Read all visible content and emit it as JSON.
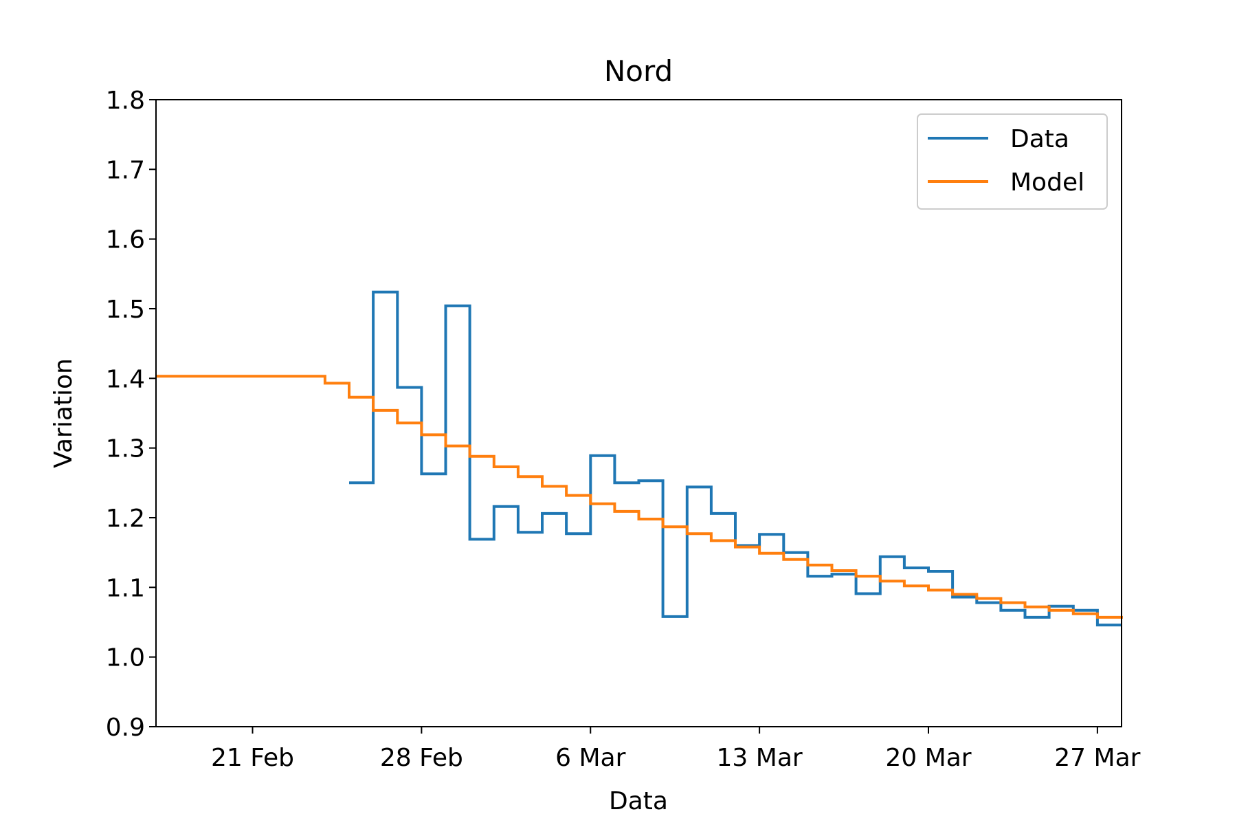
{
  "chart_data": {
    "type": "line",
    "title": "Nord",
    "xlabel": "Data",
    "ylabel": "Variation",
    "ylim": [
      0.9,
      1.8
    ],
    "xlim": [
      "2020-02-17",
      "2020-03-28"
    ],
    "x_ticks": [
      {
        "date": "2020-02-21",
        "label": "21 Feb"
      },
      {
        "date": "2020-02-28",
        "label": "28 Feb"
      },
      {
        "date": "2020-03-06",
        "label": "6 Mar"
      },
      {
        "date": "2020-03-13",
        "label": "13 Mar"
      },
      {
        "date": "2020-03-20",
        "label": "20 Mar"
      },
      {
        "date": "2020-03-27",
        "label": "27 Mar"
      }
    ],
    "y_ticks": [
      "0.9",
      "1.0",
      "1.1",
      "1.2",
      "1.3",
      "1.4",
      "1.5",
      "1.6",
      "1.7",
      "1.8"
    ],
    "grid": false,
    "legend": "upper right",
    "step": "post",
    "series": [
      {
        "name": "Data",
        "color": "#1f77b4",
        "x": [
          "2020-02-25",
          "2020-02-26",
          "2020-02-27",
          "2020-02-28",
          "2020-02-29",
          "2020-03-01",
          "2020-03-02",
          "2020-03-03",
          "2020-03-04",
          "2020-03-05",
          "2020-03-06",
          "2020-03-07",
          "2020-03-08",
          "2020-03-09",
          "2020-03-10",
          "2020-03-11",
          "2020-03-12",
          "2020-03-13",
          "2020-03-14",
          "2020-03-15",
          "2020-03-16",
          "2020-03-17",
          "2020-03-18",
          "2020-03-19",
          "2020-03-20",
          "2020-03-21",
          "2020-03-22",
          "2020-03-23",
          "2020-03-24",
          "2020-03-25",
          "2020-03-26",
          "2020-03-27",
          "2020-03-28"
        ],
        "values": [
          1.25,
          1.524,
          1.387,
          1.263,
          1.504,
          1.169,
          1.216,
          1.179,
          1.206,
          1.177,
          1.289,
          1.25,
          1.253,
          1.058,
          1.244,
          1.206,
          1.16,
          1.176,
          1.15,
          1.116,
          1.119,
          1.091,
          1.144,
          1.128,
          1.123,
          1.086,
          1.078,
          1.067,
          1.057,
          1.073,
          1.067,
          1.046,
          1.046
        ]
      },
      {
        "name": "Model",
        "color": "#ff7f0e",
        "x": [
          "2020-02-17",
          "2020-02-24",
          "2020-02-25",
          "2020-02-26",
          "2020-02-27",
          "2020-02-28",
          "2020-02-29",
          "2020-03-01",
          "2020-03-02",
          "2020-03-03",
          "2020-03-04",
          "2020-03-05",
          "2020-03-06",
          "2020-03-07",
          "2020-03-08",
          "2020-03-09",
          "2020-03-10",
          "2020-03-11",
          "2020-03-12",
          "2020-03-13",
          "2020-03-14",
          "2020-03-15",
          "2020-03-16",
          "2020-03-17",
          "2020-03-18",
          "2020-03-19",
          "2020-03-20",
          "2020-03-21",
          "2020-03-22",
          "2020-03-23",
          "2020-03-24",
          "2020-03-25",
          "2020-03-26",
          "2020-03-27",
          "2020-03-28"
        ],
        "values": [
          1.403,
          1.393,
          1.373,
          1.354,
          1.336,
          1.319,
          1.303,
          1.288,
          1.273,
          1.259,
          1.245,
          1.232,
          1.22,
          1.209,
          1.198,
          1.187,
          1.177,
          1.167,
          1.158,
          1.149,
          1.14,
          1.132,
          1.124,
          1.116,
          1.109,
          1.102,
          1.096,
          1.09,
          1.084,
          1.078,
          1.072,
          1.067,
          1.062,
          1.057,
          1.055
        ]
      }
    ]
  }
}
